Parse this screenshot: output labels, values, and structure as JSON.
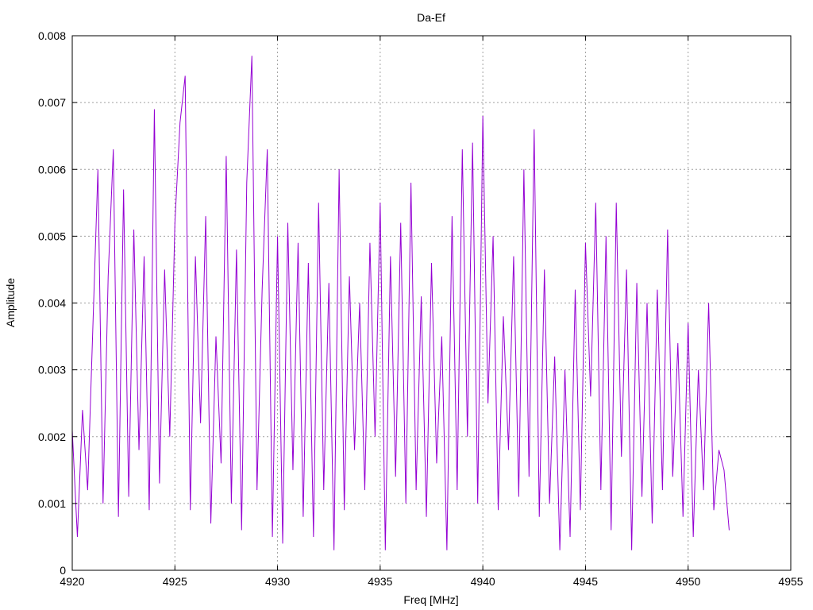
{
  "chart_data": {
    "type": "line",
    "title": "Da-Ef",
    "xlabel": "Freq [MHz]",
    "ylabel": "Amplitude",
    "xlim": [
      4920,
      4955
    ],
    "ylim": [
      0,
      0.008
    ],
    "x_ticks": [
      4920,
      4925,
      4930,
      4935,
      4940,
      4945,
      4950,
      4955
    ],
    "x_tick_labels": [
      "4920",
      "4925",
      "4930",
      "4935",
      "4940",
      "4945",
      "4950",
      "4955"
    ],
    "y_ticks": [
      0,
      0.001,
      0.002,
      0.003,
      0.004,
      0.005,
      0.006,
      0.007,
      0.008
    ],
    "y_tick_labels": [
      "0",
      "0.001",
      "0.002",
      "0.003",
      "0.004",
      "0.005",
      "0.006",
      "0.007",
      "0.008"
    ],
    "grid": true,
    "legend": "none",
    "series": [
      {
        "color": "#9400d3",
        "x": [
          4920.0,
          4920.25,
          4920.5,
          4920.75,
          4921.0,
          4921.25,
          4921.5,
          4921.75,
          4922.0,
          4922.25,
          4922.5,
          4922.75,
          4923.0,
          4923.25,
          4923.5,
          4923.75,
          4924.0,
          4924.25,
          4924.5,
          4924.75,
          4925.0,
          4925.25,
          4925.5,
          4925.75,
          4926.0,
          4926.25,
          4926.5,
          4926.75,
          4927.0,
          4927.25,
          4927.5,
          4927.75,
          4928.0,
          4928.25,
          4928.5,
          4928.75,
          4929.0,
          4929.25,
          4929.5,
          4929.75,
          4930.0,
          4930.25,
          4930.5,
          4930.75,
          4931.0,
          4931.25,
          4931.5,
          4931.75,
          4932.0,
          4932.25,
          4932.5,
          4932.75,
          4933.0,
          4933.25,
          4933.5,
          4933.75,
          4934.0,
          4934.25,
          4934.5,
          4934.75,
          4935.0,
          4935.25,
          4935.5,
          4935.75,
          4936.0,
          4936.25,
          4936.5,
          4936.75,
          4937.0,
          4937.25,
          4937.5,
          4937.75,
          4938.0,
          4938.25,
          4938.5,
          4938.75,
          4939.0,
          4939.25,
          4939.5,
          4939.75,
          4940.0,
          4940.25,
          4940.5,
          4940.75,
          4941.0,
          4941.25,
          4941.5,
          4941.75,
          4942.0,
          4942.25,
          4942.5,
          4942.75,
          4943.0,
          4943.25,
          4943.5,
          4943.75,
          4944.0,
          4944.25,
          4944.5,
          4944.75,
          4945.0,
          4945.25,
          4945.5,
          4945.75,
          4946.0,
          4946.25,
          4946.5,
          4946.75,
          4947.0,
          4947.25,
          4947.5,
          4947.75,
          4948.0,
          4948.25,
          4948.5,
          4948.75,
          4949.0,
          4949.25,
          4949.5,
          4949.75,
          4950.0,
          4950.25,
          4950.5,
          4950.75,
          4951.0,
          4951.25,
          4951.5,
          4951.75,
          4952.0
        ],
        "y": [
          0.0021,
          0.0005,
          0.0024,
          0.0012,
          0.0036,
          0.006,
          0.001,
          0.0044,
          0.0063,
          0.0008,
          0.0057,
          0.0011,
          0.0051,
          0.0018,
          0.0047,
          0.0009,
          0.0069,
          0.0013,
          0.0045,
          0.002,
          0.0052,
          0.0067,
          0.0074,
          0.0009,
          0.0047,
          0.0022,
          0.0053,
          0.0007,
          0.0035,
          0.0016,
          0.0062,
          0.001,
          0.0048,
          0.0006,
          0.0058,
          0.0077,
          0.0012,
          0.0042,
          0.0063,
          0.0005,
          0.005,
          0.0004,
          0.0052,
          0.0015,
          0.0049,
          0.0008,
          0.0046,
          0.0005,
          0.0055,
          0.0012,
          0.0043,
          0.0003,
          0.006,
          0.0009,
          0.0044,
          0.0018,
          0.004,
          0.0012,
          0.0049,
          0.002,
          0.0055,
          0.0003,
          0.0047,
          0.0014,
          0.0052,
          0.001,
          0.0058,
          0.0012,
          0.0041,
          0.0008,
          0.0046,
          0.0016,
          0.0035,
          0.0003,
          0.0053,
          0.0012,
          0.0063,
          0.002,
          0.0064,
          0.001,
          0.0068,
          0.0025,
          0.005,
          0.0009,
          0.0038,
          0.0018,
          0.0047,
          0.0011,
          0.006,
          0.0014,
          0.0066,
          0.0008,
          0.0045,
          0.001,
          0.0032,
          0.0003,
          0.003,
          0.0005,
          0.0042,
          0.0009,
          0.0049,
          0.0026,
          0.0055,
          0.0012,
          0.005,
          0.0006,
          0.0055,
          0.0017,
          0.0045,
          0.0003,
          0.0043,
          0.0011,
          0.004,
          0.0007,
          0.0042,
          0.0012,
          0.0051,
          0.0014,
          0.0034,
          0.0008,
          0.0037,
          0.0005,
          0.003,
          0.0012,
          0.004,
          0.0009,
          0.0018,
          0.0015,
          0.0006
        ]
      }
    ]
  }
}
